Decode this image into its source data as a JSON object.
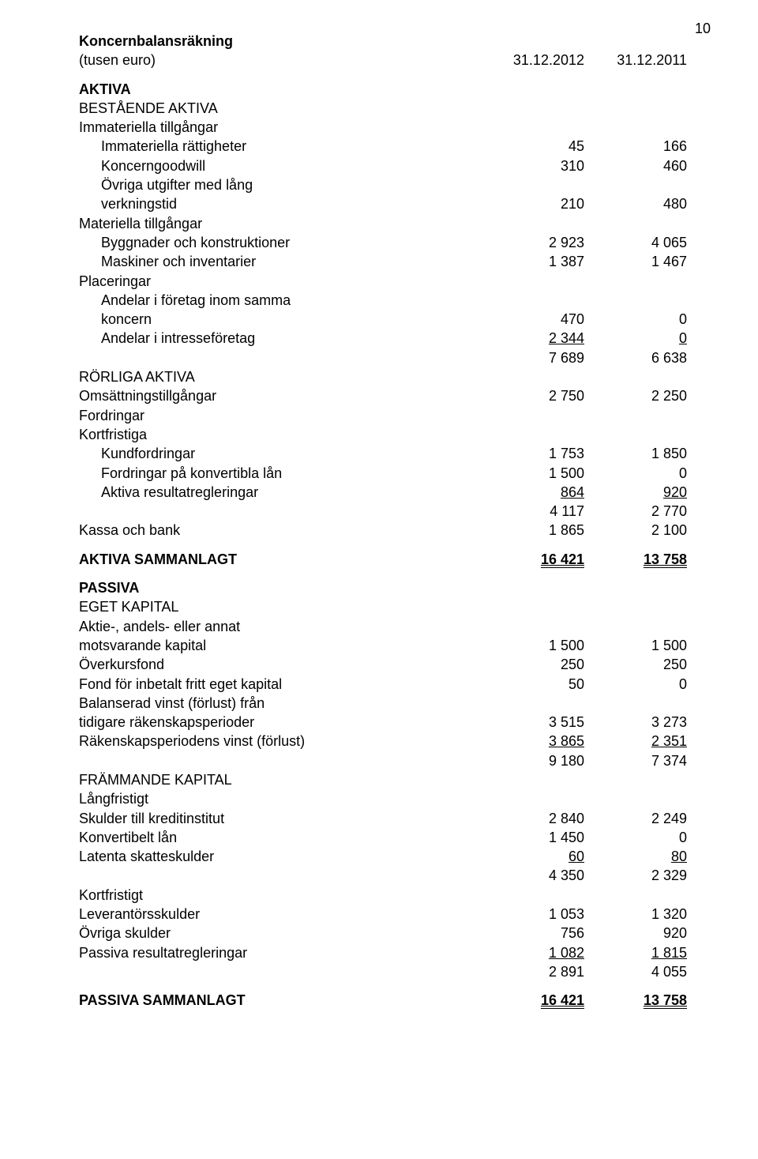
{
  "page_number": "10",
  "header": {
    "title": "Koncernbalansräkning",
    "subtitle": "(tusen euro)",
    "col1": "31.12.2012",
    "col2": "31.12.2011"
  },
  "sections": [
    {
      "type": "header_cols"
    },
    {
      "type": "spacer"
    },
    {
      "type": "row",
      "label": "AKTIVA",
      "bold": true
    },
    {
      "type": "row",
      "label": "BESTÅENDE AKTIVA"
    },
    {
      "type": "row",
      "label": "Immateriella tillgångar"
    },
    {
      "type": "row",
      "label": "Immateriella rättigheter",
      "indent": 1,
      "c1": "45",
      "c2": "166"
    },
    {
      "type": "row",
      "label": "Koncerngoodwill",
      "indent": 1,
      "c1": "310",
      "c2": "460"
    },
    {
      "type": "row",
      "label": "Övriga utgifter med lång",
      "indent": 1
    },
    {
      "type": "row",
      "label": "verkningstid",
      "indent": 1,
      "c1": "210",
      "c2": "480"
    },
    {
      "type": "row",
      "label": "Materiella tillgångar"
    },
    {
      "type": "row",
      "label": "Byggnader och konstruktioner",
      "indent": 1,
      "c1": "2 923",
      "c2": "4 065"
    },
    {
      "type": "row",
      "label": "Maskiner och inventarier",
      "indent": 1,
      "c1": "1 387",
      "c2": "1 467"
    },
    {
      "type": "row",
      "label": "Placeringar"
    },
    {
      "type": "row",
      "label": "Andelar i företag inom samma",
      "indent": 1
    },
    {
      "type": "row",
      "label": "koncern",
      "indent": 1,
      "c1": "470",
      "c2": "0"
    },
    {
      "type": "row",
      "label": "Andelar i intresseföretag",
      "indent": 1,
      "c1": "2 344",
      "c2": "0",
      "c1_style": "u",
      "c2_style": "u"
    },
    {
      "type": "row",
      "label": "",
      "c1": "7 689",
      "c2": "6 638"
    },
    {
      "type": "row",
      "label": "RÖRLIGA AKTIVA"
    },
    {
      "type": "row",
      "label": "Omsättningstillgångar",
      "c1": "2 750",
      "c2": "2 250"
    },
    {
      "type": "row",
      "label": "Fordringar"
    },
    {
      "type": "row",
      "label": "Kortfristiga"
    },
    {
      "type": "row",
      "label": "Kundfordringar",
      "indent": 1,
      "c1": "1 753",
      "c2": "1 850"
    },
    {
      "type": "row",
      "label": "Fordringar på konvertibla lån",
      "indent": 1,
      "c1": "1 500",
      "c2": "0"
    },
    {
      "type": "row",
      "label": "Aktiva resultatregleringar",
      "indent": 1,
      "c1": "864",
      "c2": "920",
      "c1_style": "u",
      "c2_style": "u"
    },
    {
      "type": "row",
      "label": "",
      "c1": "4 117",
      "c2": "2 770"
    },
    {
      "type": "row",
      "label": "Kassa och bank",
      "c1": "1 865",
      "c2": "2 100"
    },
    {
      "type": "spacer"
    },
    {
      "type": "row",
      "label": "AKTIVA SAMMANLAGT",
      "bold": true,
      "c1": "16 421",
      "c2": "13 758",
      "c1_style": "du",
      "c2_style": "du"
    },
    {
      "type": "spacer"
    },
    {
      "type": "row",
      "label": "PASSIVA",
      "bold": true
    },
    {
      "type": "row",
      "label": "EGET KAPITAL"
    },
    {
      "type": "row",
      "label": "Aktie-, andels- eller annat"
    },
    {
      "type": "row",
      "label": "motsvarande kapital",
      "c1": "1 500",
      "c2": "1 500"
    },
    {
      "type": "row",
      "label": "Överkursfond",
      "c1": "250",
      "c2": "250"
    },
    {
      "type": "row",
      "label": "Fond för inbetalt fritt eget kapital",
      "c1": "50",
      "c2": "0"
    },
    {
      "type": "row",
      "label": "Balanserad vinst (förlust) från"
    },
    {
      "type": "row",
      "label": "tidigare räkenskapsperioder",
      "c1": "3 515",
      "c2": "3 273"
    },
    {
      "type": "row",
      "label": "Räkenskapsperiodens vinst (förlust)",
      "c1": "3 865",
      "c2": "2 351",
      "c1_style": "u",
      "c2_style": "u"
    },
    {
      "type": "row",
      "label": "",
      "c1": "9 180",
      "c2": "7 374"
    },
    {
      "type": "row",
      "label": "FRÄMMANDE KAPITAL"
    },
    {
      "type": "row",
      "label": "Långfristigt"
    },
    {
      "type": "row",
      "label": "Skulder till kreditinstitut",
      "c1": "2 840",
      "c2": "2 249"
    },
    {
      "type": "row",
      "label": "Konvertibelt lån",
      "c1": "1 450",
      "c2": "0"
    },
    {
      "type": "row",
      "label": "Latenta skatteskulder",
      "c1": "60",
      "c2": "80",
      "c1_style": "u",
      "c2_style": "u"
    },
    {
      "type": "row",
      "label": "",
      "c1": "4 350",
      "c2": "2 329"
    },
    {
      "type": "row",
      "label": "Kortfristigt"
    },
    {
      "type": "row",
      "label": "Leverantörsskulder",
      "c1": "1 053",
      "c2": "1 320"
    },
    {
      "type": "row",
      "label": "Övriga skulder",
      "c1": "756",
      "c2": "920"
    },
    {
      "type": "row",
      "label": "Passiva resultatregleringar",
      "c1": "1 082",
      "c2": "1 815",
      "c1_style": "u",
      "c2_style": "u"
    },
    {
      "type": "row",
      "label": "",
      "c1": "2 891",
      "c2": "4 055"
    },
    {
      "type": "spacer"
    },
    {
      "type": "row",
      "label": "PASSIVA SAMMANLAGT",
      "bold": true,
      "c1": "16 421",
      "c2": "13 758",
      "c1_style": "du",
      "c2_style": "du"
    }
  ]
}
